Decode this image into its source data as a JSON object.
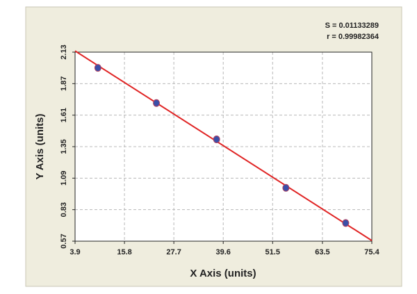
{
  "chart_data": {
    "type": "scatter",
    "x_label": "X Axis (units)",
    "y_label": "Y Axis (units)",
    "annotations": [
      "S = 0.01133289",
      "r = 0.99982364"
    ],
    "x": [
      9.4,
      23.5,
      38.0,
      54.7,
      69.1
    ],
    "values": [
      2.0,
      1.71,
      1.41,
      1.01,
      0.72
    ],
    "color": "#3b4fa8",
    "fit": {
      "x": [
        3.9,
        75.4
      ],
      "y": [
        2.14,
        0.575
      ],
      "color": "#e02424"
    },
    "xlim": [
      3.9,
      75.4
    ],
    "xticks": [
      3.9,
      15.8,
      27.7,
      39.6,
      51.5,
      63.5,
      75.4
    ],
    "ylim": [
      0.57,
      2.13
    ],
    "yticks": [
      0.57,
      0.83,
      1.09,
      1.35,
      1.61,
      1.87,
      2.13
    ],
    "grid": true
  }
}
